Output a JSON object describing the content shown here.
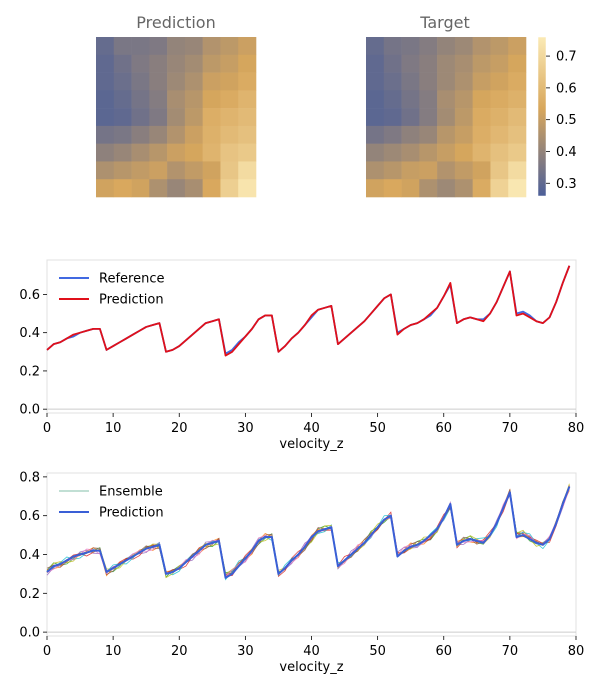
{
  "chart_data": [
    {
      "type": "heatmap",
      "title": "Prediction",
      "shape": [
        9,
        9
      ],
      "colorscale": [
        "#4c5f99",
        "#d8a75c",
        "#fbeab5"
      ],
      "z": [
        [
          0.31,
          0.35,
          0.35,
          0.36,
          0.4,
          0.41,
          0.46,
          0.48,
          0.51
        ],
        [
          0.3,
          0.33,
          0.36,
          0.38,
          0.41,
          0.43,
          0.48,
          0.5,
          0.53
        ],
        [
          0.3,
          0.32,
          0.35,
          0.38,
          0.42,
          0.45,
          0.51,
          0.52,
          0.55
        ],
        [
          0.29,
          0.31,
          0.34,
          0.37,
          0.44,
          0.47,
          0.53,
          0.55,
          0.58
        ],
        [
          0.29,
          0.3,
          0.33,
          0.36,
          0.43,
          0.48,
          0.56,
          0.58,
          0.6
        ],
        [
          0.34,
          0.35,
          0.38,
          0.41,
          0.46,
          0.51,
          0.57,
          0.6,
          0.62
        ],
        [
          0.39,
          0.41,
          0.44,
          0.47,
          0.51,
          0.53,
          0.58,
          0.63,
          0.65
        ],
        [
          0.45,
          0.47,
          0.49,
          0.51,
          0.46,
          0.49,
          0.52,
          0.64,
          0.71
        ],
        [
          0.52,
          0.54,
          0.52,
          0.45,
          0.41,
          0.44,
          0.54,
          0.67,
          0.74
        ]
      ]
    },
    {
      "type": "heatmap",
      "title": "Target",
      "shape": [
        9,
        9
      ],
      "colorscale": [
        "#4c5f99",
        "#d8a75c",
        "#fbeab5"
      ],
      "z": [
        [
          0.31,
          0.34,
          0.35,
          0.37,
          0.4,
          0.42,
          0.46,
          0.48,
          0.51
        ],
        [
          0.3,
          0.33,
          0.36,
          0.38,
          0.42,
          0.44,
          0.48,
          0.5,
          0.53
        ],
        [
          0.3,
          0.32,
          0.35,
          0.38,
          0.42,
          0.45,
          0.5,
          0.52,
          0.55
        ],
        [
          0.29,
          0.31,
          0.34,
          0.37,
          0.44,
          0.47,
          0.53,
          0.55,
          0.57
        ],
        [
          0.29,
          0.3,
          0.33,
          0.37,
          0.43,
          0.48,
          0.55,
          0.57,
          0.6
        ],
        [
          0.34,
          0.36,
          0.39,
          0.41,
          0.47,
          0.5,
          0.56,
          0.59,
          0.62
        ],
        [
          0.4,
          0.42,
          0.44,
          0.47,
          0.5,
          0.53,
          0.58,
          0.62,
          0.65
        ],
        [
          0.45,
          0.47,
          0.5,
          0.51,
          0.46,
          0.49,
          0.52,
          0.64,
          0.71
        ],
        [
          0.52,
          0.54,
          0.52,
          0.45,
          0.42,
          0.45,
          0.55,
          0.68,
          0.75
        ]
      ]
    },
    {
      "type": "colorbar",
      "range": [
        0.26,
        0.76
      ],
      "ticks": [
        "0.3",
        "0.4",
        "0.5",
        "0.6",
        "0.7"
      ],
      "tick_values": [
        0.3,
        0.4,
        0.5,
        0.6,
        0.7
      ]
    },
    {
      "type": "line",
      "xlabel": "velocity_z",
      "xlim": [
        0,
        80
      ],
      "ylim": [
        -0.02,
        0.78
      ],
      "xticks": [
        "0",
        "10",
        "20",
        "30",
        "40",
        "50",
        "60",
        "70",
        "80"
      ],
      "xtick_values": [
        0,
        10,
        20,
        30,
        40,
        50,
        60,
        70,
        80
      ],
      "yticks": [
        "0.0",
        "0.2",
        "0.4",
        "0.6"
      ],
      "ytick_values": [
        0.0,
        0.2,
        0.4,
        0.6
      ],
      "legend": "top-left",
      "series": [
        {
          "name": "Reference",
          "color": "#4169e1",
          "values": [
            0.31,
            0.34,
            0.35,
            0.37,
            0.38,
            0.4,
            0.41,
            0.42,
            0.42,
            0.31,
            0.33,
            0.35,
            0.37,
            0.39,
            0.41,
            0.43,
            0.44,
            0.45,
            0.3,
            0.31,
            0.33,
            0.36,
            0.39,
            0.42,
            0.45,
            0.46,
            0.47,
            0.29,
            0.31,
            0.35,
            0.38,
            0.42,
            0.47,
            0.49,
            0.49,
            0.3,
            0.33,
            0.37,
            0.4,
            0.44,
            0.48,
            0.52,
            0.53,
            0.54,
            0.34,
            0.37,
            0.4,
            0.43,
            0.46,
            0.5,
            0.54,
            0.58,
            0.6,
            0.4,
            0.42,
            0.44,
            0.45,
            0.47,
            0.49,
            0.53,
            0.59,
            0.65,
            0.45,
            0.47,
            0.48,
            0.47,
            0.47,
            0.5,
            0.56,
            0.64,
            0.72,
            0.5,
            0.51,
            0.49,
            0.46,
            0.45,
            0.48,
            0.56,
            0.66,
            0.75
          ]
        },
        {
          "name": "Prediction",
          "color": "#e0101a",
          "values": [
            0.31,
            0.34,
            0.35,
            0.37,
            0.39,
            0.4,
            0.41,
            0.42,
            0.42,
            0.31,
            0.33,
            0.35,
            0.37,
            0.39,
            0.41,
            0.43,
            0.44,
            0.45,
            0.3,
            0.31,
            0.33,
            0.36,
            0.39,
            0.42,
            0.45,
            0.46,
            0.47,
            0.28,
            0.3,
            0.34,
            0.38,
            0.42,
            0.47,
            0.49,
            0.49,
            0.3,
            0.33,
            0.37,
            0.4,
            0.44,
            0.49,
            0.52,
            0.53,
            0.54,
            0.34,
            0.37,
            0.4,
            0.43,
            0.46,
            0.5,
            0.54,
            0.58,
            0.6,
            0.39,
            0.42,
            0.44,
            0.45,
            0.47,
            0.5,
            0.53,
            0.59,
            0.66,
            0.45,
            0.47,
            0.48,
            0.47,
            0.46,
            0.5,
            0.56,
            0.64,
            0.72,
            0.49,
            0.5,
            0.48,
            0.46,
            0.45,
            0.48,
            0.56,
            0.66,
            0.75
          ]
        }
      ]
    },
    {
      "type": "line",
      "xlabel": "velocity_z",
      "xlim": [
        0,
        80
      ],
      "ylim": [
        -0.02,
        0.82
      ],
      "xticks": [
        "0",
        "10",
        "20",
        "30",
        "40",
        "50",
        "60",
        "70",
        "80"
      ],
      "xtick_values": [
        0,
        10,
        20,
        30,
        40,
        50,
        60,
        70,
        80
      ],
      "yticks": [
        "0.0",
        "0.2",
        "0.4",
        "0.6",
        "0.8"
      ],
      "ytick_values": [
        0.0,
        0.2,
        0.4,
        0.6,
        0.8
      ],
      "legend": "top-left",
      "ensemble_colors": [
        "#2ca02c",
        "#ff7f0e",
        "#9467bd",
        "#d62728",
        "#17becf",
        "#bcbd22",
        "#8c564b",
        "#e377c2"
      ],
      "series": [
        {
          "name": "Ensemble",
          "color": "#5aaa8c",
          "values": [
            0.31,
            0.34,
            0.35,
            0.37,
            0.38,
            0.4,
            0.41,
            0.42,
            0.42,
            0.31,
            0.33,
            0.35,
            0.37,
            0.39,
            0.41,
            0.43,
            0.44,
            0.45,
            0.3,
            0.31,
            0.33,
            0.36,
            0.39,
            0.42,
            0.45,
            0.46,
            0.47,
            0.29,
            0.31,
            0.35,
            0.38,
            0.42,
            0.47,
            0.49,
            0.49,
            0.3,
            0.33,
            0.37,
            0.4,
            0.44,
            0.48,
            0.52,
            0.53,
            0.54,
            0.34,
            0.37,
            0.4,
            0.43,
            0.46,
            0.5,
            0.54,
            0.58,
            0.6,
            0.4,
            0.42,
            0.44,
            0.45,
            0.47,
            0.49,
            0.53,
            0.59,
            0.65,
            0.45,
            0.47,
            0.48,
            0.47,
            0.47,
            0.5,
            0.56,
            0.64,
            0.72,
            0.5,
            0.51,
            0.49,
            0.46,
            0.45,
            0.48,
            0.56,
            0.66,
            0.75
          ]
        },
        {
          "name": "Prediction",
          "color": "#3a5fd6",
          "values": [
            0.31,
            0.34,
            0.35,
            0.37,
            0.39,
            0.4,
            0.41,
            0.42,
            0.42,
            0.31,
            0.33,
            0.35,
            0.37,
            0.39,
            0.41,
            0.43,
            0.44,
            0.45,
            0.3,
            0.31,
            0.33,
            0.36,
            0.39,
            0.42,
            0.45,
            0.46,
            0.47,
            0.28,
            0.3,
            0.34,
            0.38,
            0.42,
            0.47,
            0.49,
            0.49,
            0.3,
            0.33,
            0.37,
            0.4,
            0.44,
            0.49,
            0.52,
            0.53,
            0.54,
            0.34,
            0.37,
            0.4,
            0.43,
            0.46,
            0.5,
            0.54,
            0.58,
            0.6,
            0.39,
            0.42,
            0.44,
            0.45,
            0.47,
            0.5,
            0.53,
            0.59,
            0.66,
            0.45,
            0.47,
            0.48,
            0.47,
            0.46,
            0.5,
            0.56,
            0.64,
            0.72,
            0.49,
            0.5,
            0.48,
            0.46,
            0.45,
            0.48,
            0.56,
            0.66,
            0.75
          ]
        }
      ]
    }
  ]
}
